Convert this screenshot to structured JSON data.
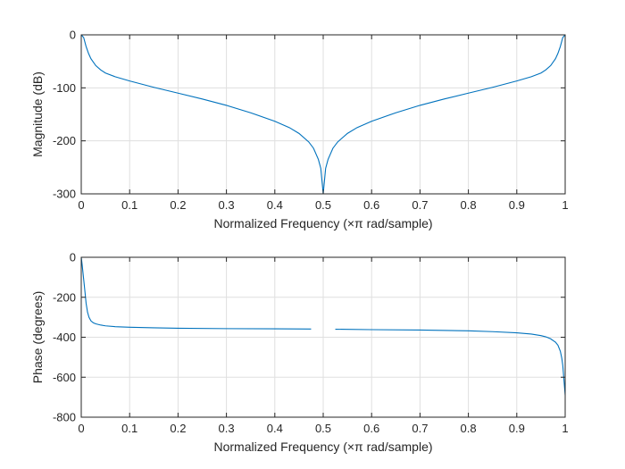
{
  "chart_data": [
    {
      "type": "line",
      "xlabel": "Normalized Frequency  (×π rad/sample)",
      "ylabel": "Magnitude (dB)",
      "xlim": [
        0,
        1
      ],
      "ylim": [
        -300,
        0
      ],
      "xticks": [
        0,
        0.1,
        0.2,
        0.3,
        0.4,
        0.5,
        0.6,
        0.7,
        0.8,
        0.9,
        1
      ],
      "xtick_labels": [
        "0",
        "0.1",
        "0.2",
        "0.3",
        "0.4",
        "0.5",
        "0.6",
        "0.7",
        "0.8",
        "0.9",
        "1"
      ],
      "yticks": [
        -300,
        -200,
        -100,
        0
      ],
      "ytick_labels": [
        "-300",
        "-200",
        "-100",
        "0"
      ],
      "grid": true,
      "color": "#0072bd",
      "series": [
        {
          "x": [
            0,
            0.005,
            0.01,
            0.015,
            0.02,
            0.03,
            0.04,
            0.05,
            0.07,
            0.1,
            0.15,
            0.2,
            0.25,
            0.3,
            0.35,
            0.4,
            0.43,
            0.45,
            0.47,
            0.48,
            0.49,
            0.495,
            0.5,
            0.505,
            0.51,
            0.52,
            0.53,
            0.55,
            0.57,
            0.6,
            0.65,
            0.7,
            0.75,
            0.8,
            0.85,
            0.9,
            0.93,
            0.95,
            0.96,
            0.97,
            0.98,
            0.985,
            0.99,
            0.995,
            1
          ],
          "y": [
            0,
            -5,
            -22,
            -35,
            -45,
            -58,
            -66,
            -72,
            -79,
            -87,
            -99,
            -110,
            -121,
            -133,
            -147,
            -163,
            -175,
            -186,
            -202,
            -214,
            -235,
            -252,
            -300,
            -252,
            -235,
            -214,
            -202,
            -186,
            -175,
            -163,
            -147,
            -133,
            -121,
            -110,
            -99,
            -87,
            -79,
            -72,
            -66,
            -58,
            -45,
            -35,
            -22,
            -5,
            0
          ]
        }
      ]
    },
    {
      "type": "line",
      "xlabel": "Normalized Frequency  (×π rad/sample)",
      "ylabel": "Phase (degrees)",
      "xlim": [
        0,
        1
      ],
      "ylim": [
        -800,
        0
      ],
      "xticks": [
        0,
        0.1,
        0.2,
        0.3,
        0.4,
        0.5,
        0.6,
        0.7,
        0.8,
        0.9,
        1
      ],
      "xtick_labels": [
        "0",
        "0.1",
        "0.2",
        "0.3",
        "0.4",
        "0.5",
        "0.6",
        "0.7",
        "0.8",
        "0.9",
        "1"
      ],
      "yticks": [
        -800,
        -600,
        -400,
        -200,
        0
      ],
      "ytick_labels": [
        "-800",
        "-600",
        "-400",
        "-200",
        "0"
      ],
      "grid": true,
      "color": "#0072bd",
      "series": [
        {
          "segments": [
            {
              "x": [
                0,
                0.002,
                0.005,
                0.008,
                0.01,
                0.013,
                0.016,
                0.02,
                0.025,
                0.03,
                0.04,
                0.05,
                0.07,
                0.1,
                0.15,
                0.2,
                0.3,
                0.4,
                0.475
              ],
              "y": [
                0,
                -40,
                -110,
                -180,
                -230,
                -275,
                -300,
                -318,
                -328,
                -333,
                -339,
                -343,
                -347,
                -350,
                -353,
                -355,
                -357,
                -358,
                -359
              ]
            },
            {
              "x": [
                0.525,
                0.6,
                0.7,
                0.8,
                0.85,
                0.9,
                0.93,
                0.95,
                0.96,
                0.97,
                0.98,
                0.985,
                0.99,
                0.993,
                0.995,
                0.997,
                0.999,
                1
              ],
              "y": [
                -360,
                -362,
                -364,
                -368,
                -372,
                -378,
                -384,
                -392,
                -398,
                -408,
                -425,
                -440,
                -470,
                -505,
                -540,
                -600,
                -660,
                -690
              ]
            }
          ]
        }
      ]
    }
  ]
}
